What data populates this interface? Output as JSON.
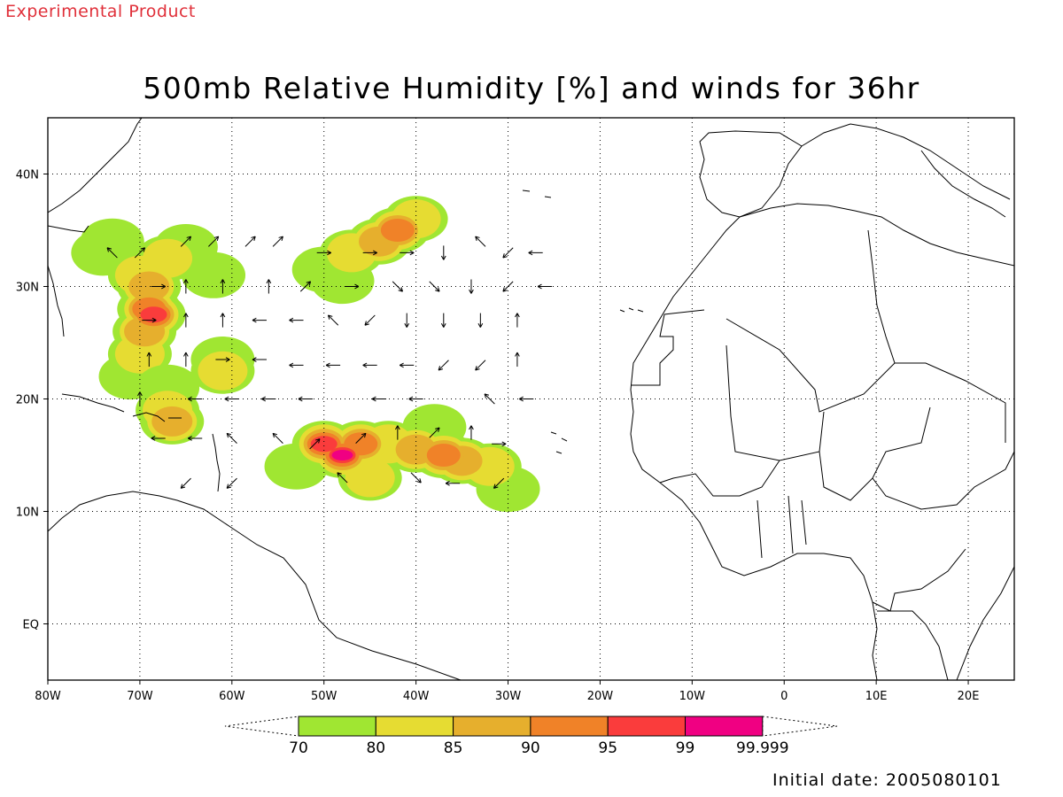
{
  "header": {
    "product_label": "Experimental Product",
    "title": "500mb Relative Humidity [%] and winds for 36hr"
  },
  "footer": {
    "initial_date": "Initial date: 2005080101"
  },
  "map": {
    "lon_range": [
      -80,
      25
    ],
    "lat_range": [
      -5,
      45
    ],
    "x_tick_labels": [
      {
        "lon": -80,
        "label": "80W"
      },
      {
        "lon": -70,
        "label": "70W"
      },
      {
        "lon": -60,
        "label": "60W"
      },
      {
        "lon": -50,
        "label": "50W"
      },
      {
        "lon": -40,
        "label": "40W"
      },
      {
        "lon": -30,
        "label": "30W"
      },
      {
        "lon": -20,
        "label": "20W"
      },
      {
        "lon": -10,
        "label": "10W"
      },
      {
        "lon": 0,
        "label": "0"
      },
      {
        "lon": 10,
        "label": "10E"
      },
      {
        "lon": 20,
        "label": "20E"
      }
    ],
    "y_tick_labels": [
      {
        "lat": 0,
        "label": "EQ"
      },
      {
        "lat": 10,
        "label": "10N"
      },
      {
        "lat": 20,
        "label": "20N"
      },
      {
        "lat": 30,
        "label": "30N"
      },
      {
        "lat": 40,
        "label": "40N"
      }
    ],
    "grid": "dotted",
    "colors": {
      "line": "#000000",
      "product_label": "#e0303a"
    }
  },
  "colorbar": {
    "levels": [
      "70",
      "80",
      "85",
      "90",
      "95",
      "99",
      "99.999"
    ],
    "colors": [
      "#a0e632",
      "#e6dc32",
      "#e6af2d",
      "#f08228",
      "#fa3c3c",
      "#f00082"
    ]
  },
  "humidity_regions": [
    {
      "name": "west-atlantic-band",
      "cells": [
        {
          "lon": -74,
          "lat": 33,
          "level": 0
        },
        {
          "lon": -73,
          "lat": 34,
          "level": 0
        },
        {
          "lon": -70,
          "lat": 31,
          "level": 1
        },
        {
          "lon": -69,
          "lat": 30,
          "level": 2
        },
        {
          "lon": -69,
          "lat": 28,
          "level": 3
        },
        {
          "lon": -68.5,
          "lat": 27.5,
          "level": 4
        },
        {
          "lon": -69.5,
          "lat": 26,
          "level": 2
        },
        {
          "lon": -70,
          "lat": 24,
          "level": 1
        },
        {
          "lon": -71,
          "lat": 22,
          "level": 0
        },
        {
          "lon": -67,
          "lat": 32.5,
          "level": 1
        },
        {
          "lon": -65,
          "lat": 33.5,
          "level": 0
        },
        {
          "lon": -62,
          "lat": 31,
          "level": 0
        }
      ]
    },
    {
      "name": "north-central-band",
      "cells": [
        {
          "lon": -50,
          "lat": 31.5,
          "level": 0
        },
        {
          "lon": -47,
          "lat": 33,
          "level": 1
        },
        {
          "lon": -44,
          "lat": 34,
          "level": 2
        },
        {
          "lon": -42,
          "lat": 35,
          "level": 3
        },
        {
          "lon": -40,
          "lat": 36,
          "level": 1
        },
        {
          "lon": -48,
          "lat": 30.5,
          "level": 0
        }
      ]
    },
    {
      "name": "caribbean-cell",
      "cells": [
        {
          "lon": -67,
          "lat": 19,
          "level": 1
        },
        {
          "lon": -66.5,
          "lat": 18,
          "level": 2
        },
        {
          "lon": -67,
          "lat": 21,
          "level": 0
        },
        {
          "lon": -61,
          "lat": 22.5,
          "level": 1
        },
        {
          "lon": -61,
          "lat": 23.5,
          "level": 0
        }
      ]
    },
    {
      "name": "tropical-wave",
      "cells": [
        {
          "lon": -50,
          "lat": 16,
          "level": 4
        },
        {
          "lon": -48,
          "lat": 15,
          "level": 5
        },
        {
          "lon": -46,
          "lat": 16,
          "level": 3
        },
        {
          "lon": -43,
          "lat": 16,
          "level": 1
        },
        {
          "lon": -40,
          "lat": 15.5,
          "level": 2
        },
        {
          "lon": -37,
          "lat": 15,
          "level": 3
        },
        {
          "lon": -35,
          "lat": 14.5,
          "level": 2
        },
        {
          "lon": -32,
          "lat": 14,
          "level": 1
        },
        {
          "lon": -30,
          "lat": 12,
          "level": 0
        },
        {
          "lon": -53,
          "lat": 14,
          "level": 0
        },
        {
          "lon": -45,
          "lat": 13,
          "level": 1
        },
        {
          "lon": -38,
          "lat": 17.5,
          "level": 0
        }
      ]
    }
  ],
  "wind_vectors": [
    {
      "lon": -73,
      "lat": 33,
      "u": -1,
      "v": 1
    },
    {
      "lon": -70,
      "lat": 33,
      "u": 1,
      "v": 1
    },
    {
      "lon": -68,
      "lat": 30,
      "u": 1,
      "v": 0
    },
    {
      "lon": -65,
      "lat": 34,
      "u": 1,
      "v": 1
    },
    {
      "lon": -62,
      "lat": 34,
      "u": 1,
      "v": 1
    },
    {
      "lon": -58,
      "lat": 34,
      "u": 1,
      "v": 1
    },
    {
      "lon": -55,
      "lat": 34,
      "u": 1,
      "v": 1
    },
    {
      "lon": -50,
      "lat": 33,
      "u": 1,
      "v": 0
    },
    {
      "lon": -45,
      "lat": 33,
      "u": 1,
      "v": 0
    },
    {
      "lon": -41,
      "lat": 33,
      "u": 1,
      "v": 0
    },
    {
      "lon": -37,
      "lat": 33,
      "u": 0,
      "v": -1
    },
    {
      "lon": -33,
      "lat": 34,
      "u": -1,
      "v": 1
    },
    {
      "lon": -30,
      "lat": 33,
      "u": -1,
      "v": -1
    },
    {
      "lon": -27,
      "lat": 33,
      "u": -1,
      "v": 0
    },
    {
      "lon": -65,
      "lat": 30,
      "u": 0,
      "v": 1
    },
    {
      "lon": -61,
      "lat": 30,
      "u": 0,
      "v": 1
    },
    {
      "lon": -56,
      "lat": 30,
      "u": 0,
      "v": 1
    },
    {
      "lon": -52,
      "lat": 30,
      "u": 1,
      "v": 1
    },
    {
      "lon": -47,
      "lat": 30,
      "u": 1,
      "v": 0
    },
    {
      "lon": -42,
      "lat": 30,
      "u": 1,
      "v": -1
    },
    {
      "lon": -38,
      "lat": 30,
      "u": 1,
      "v": -1
    },
    {
      "lon": -34,
      "lat": 30,
      "u": 0,
      "v": -1
    },
    {
      "lon": -30,
      "lat": 30,
      "u": -1,
      "v": -1
    },
    {
      "lon": -26,
      "lat": 30,
      "u": -1,
      "v": 0
    },
    {
      "lon": -69,
      "lat": 27,
      "u": 1,
      "v": 0
    },
    {
      "lon": -65,
      "lat": 27,
      "u": 0,
      "v": 1
    },
    {
      "lon": -61,
      "lat": 27,
      "u": 0,
      "v": 1
    },
    {
      "lon": -57,
      "lat": 27,
      "u": -1,
      "v": 0
    },
    {
      "lon": -53,
      "lat": 27,
      "u": -1,
      "v": 0
    },
    {
      "lon": -49,
      "lat": 27,
      "u": -1,
      "v": 1
    },
    {
      "lon": -45,
      "lat": 27,
      "u": -1,
      "v": -1
    },
    {
      "lon": -41,
      "lat": 27,
      "u": 0,
      "v": -1
    },
    {
      "lon": -37,
      "lat": 27,
      "u": 0,
      "v": -1
    },
    {
      "lon": -33,
      "lat": 27,
      "u": 0,
      "v": -1
    },
    {
      "lon": -29,
      "lat": 27,
      "u": 0,
      "v": 1
    },
    {
      "lon": -69,
      "lat": 23.5,
      "u": 0,
      "v": 1
    },
    {
      "lon": -65,
      "lat": 23.5,
      "u": 0,
      "v": 1
    },
    {
      "lon": -61,
      "lat": 23.5,
      "u": 1,
      "v": 0
    },
    {
      "lon": -57,
      "lat": 23.5,
      "u": -1,
      "v": 0
    },
    {
      "lon": -53,
      "lat": 23,
      "u": -1,
      "v": 0
    },
    {
      "lon": -49,
      "lat": 23,
      "u": -1,
      "v": 0
    },
    {
      "lon": -45,
      "lat": 23,
      "u": -1,
      "v": 0
    },
    {
      "lon": -41,
      "lat": 23,
      "u": -1,
      "v": 0
    },
    {
      "lon": -37,
      "lat": 23,
      "u": -1,
      "v": -1
    },
    {
      "lon": -33,
      "lat": 23,
      "u": -1,
      "v": -1
    },
    {
      "lon": -29,
      "lat": 23.5,
      "u": 0,
      "v": 1
    },
    {
      "lon": -70,
      "lat": 20,
      "u": 0,
      "v": 1
    },
    {
      "lon": -64,
      "lat": 20,
      "u": -1,
      "v": 0
    },
    {
      "lon": -60,
      "lat": 20,
      "u": -1,
      "v": 0
    },
    {
      "lon": -56,
      "lat": 20,
      "u": -1,
      "v": 0
    },
    {
      "lon": -52,
      "lat": 20,
      "u": -1,
      "v": 0
    },
    {
      "lon": -44,
      "lat": 20,
      "u": -1,
      "v": 0
    },
    {
      "lon": -40,
      "lat": 20,
      "u": -1,
      "v": 0
    },
    {
      "lon": -32,
      "lat": 20,
      "u": -1,
      "v": 1
    },
    {
      "lon": -28,
      "lat": 20,
      "u": -1,
      "v": 0
    },
    {
      "lon": -68,
      "lat": 16.5,
      "u": -1,
      "v": 0
    },
    {
      "lon": -64,
      "lat": 16.5,
      "u": -1,
      "v": 0
    },
    {
      "lon": -60,
      "lat": 16.5,
      "u": -1,
      "v": 1
    },
    {
      "lon": -55,
      "lat": 16.5,
      "u": -1,
      "v": 1
    },
    {
      "lon": -51,
      "lat": 16,
      "u": 1,
      "v": 1
    },
    {
      "lon": -46,
      "lat": 16.5,
      "u": 1,
      "v": 1
    },
    {
      "lon": -42,
      "lat": 17,
      "u": 0,
      "v": 1
    },
    {
      "lon": -38,
      "lat": 17,
      "u": 1,
      "v": 1
    },
    {
      "lon": -34,
      "lat": 17,
      "u": 0,
      "v": 1
    },
    {
      "lon": -31,
      "lat": 16,
      "u": 1,
      "v": 0
    },
    {
      "lon": -65,
      "lat": 12.5,
      "u": -1,
      "v": -1
    },
    {
      "lon": -60,
      "lat": 12.5,
      "u": -1,
      "v": -1
    },
    {
      "lon": -48,
      "lat": 13,
      "u": -1,
      "v": 1
    },
    {
      "lon": -40,
      "lat": 13,
      "u": 1,
      "v": -1
    },
    {
      "lon": -36,
      "lat": 12.5,
      "u": -1,
      "v": 0
    },
    {
      "lon": -31,
      "lat": 12.5,
      "u": -1,
      "v": -1
    }
  ]
}
